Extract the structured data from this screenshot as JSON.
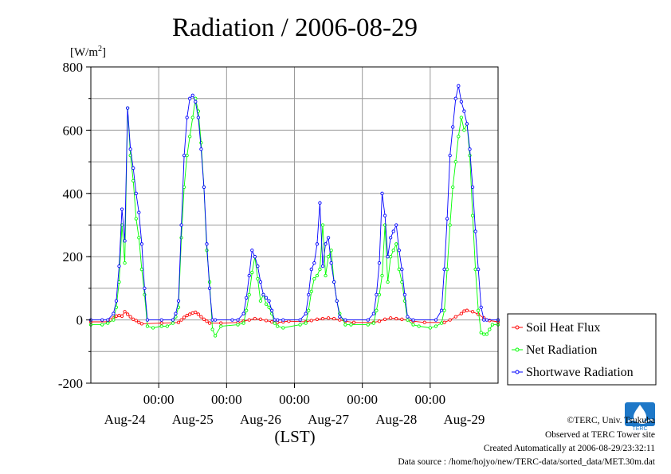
{
  "chart_data": {
    "type": "line",
    "title": "Radiation / 2006-08-29",
    "unit_label": "[W/m",
    "unit_sup": "2",
    "unit_close": "]",
    "xlabel": "(LST)",
    "ylim": [
      -200,
      800
    ],
    "yticks": [
      -200,
      0,
      200,
      400,
      600,
      800
    ],
    "grid": true,
    "legend_position": "bottom-right",
    "x_time_range_hours": [
      0,
      144
    ],
    "x_midnight_ticks": [
      {
        "hour": 24,
        "label": "00:00"
      },
      {
        "hour": 48,
        "label": "00:00"
      },
      {
        "hour": 72,
        "label": "00:00"
      },
      {
        "hour": 96,
        "label": "00:00"
      },
      {
        "hour": 120,
        "label": "00:00"
      }
    ],
    "x_day_labels": [
      {
        "hour": 12,
        "label": "Aug-24"
      },
      {
        "hour": 36,
        "label": "Aug-25"
      },
      {
        "hour": 60,
        "label": "Aug-26"
      },
      {
        "hour": 84,
        "label": "Aug-27"
      },
      {
        "hour": 108,
        "label": "Aug-28"
      },
      {
        "hour": 132,
        "label": "Aug-29"
      }
    ],
    "x_unit": "hours since 2006-08-23 12:00 LST",
    "series": [
      {
        "name": "Soil Heat Flux",
        "color": "#ff0000",
        "x": [
          0,
          6,
          7,
          8,
          9,
          10,
          11,
          12,
          13,
          14,
          15,
          16,
          17,
          18,
          25,
          31,
          32,
          33,
          34,
          35,
          36,
          37,
          38,
          39,
          40,
          41,
          42,
          46,
          52,
          54,
          56,
          58,
          60,
          62,
          64,
          66,
          68,
          70,
          76,
          78,
          80,
          82,
          84,
          86,
          88,
          90,
          93,
          100,
          102,
          104,
          106,
          108,
          110,
          112,
          114,
          118,
          125,
          127,
          129,
          131,
          132,
          133,
          135,
          137,
          139,
          141,
          144
        ],
        "y": [
          -6,
          -6,
          0,
          6,
          12,
          14,
          12,
          26,
          18,
          10,
          2,
          -2,
          -8,
          -12,
          -10,
          -8,
          0,
          8,
          14,
          18,
          22,
          24,
          18,
          10,
          2,
          -4,
          -10,
          -10,
          -8,
          -4,
          0,
          4,
          2,
          -2,
          -6,
          -8,
          -6,
          -4,
          -6,
          -2,
          2,
          4,
          6,
          4,
          0,
          -4,
          -8,
          -8,
          -4,
          2,
          6,
          4,
          2,
          0,
          -4,
          -8,
          -8,
          0,
          10,
          20,
          28,
          30,
          26,
          18,
          6,
          -2,
          -6
        ]
      },
      {
        "name": "Net Radiation",
        "color": "#00ff00",
        "x": [
          0,
          4,
          6,
          8,
          9,
          10,
          11,
          12,
          13,
          14,
          15,
          16,
          17,
          18,
          19,
          20,
          22,
          25,
          27,
          29,
          30,
          31,
          32,
          33,
          34,
          35,
          36,
          37,
          38,
          39,
          40,
          41,
          42,
          43,
          44,
          46,
          52,
          54,
          55,
          56,
          57,
          58,
          59,
          60,
          61,
          62,
          63,
          64,
          65,
          66,
          68,
          74,
          76,
          77,
          78,
          79,
          80,
          81,
          82,
          83,
          84,
          85,
          86,
          87,
          88,
          90,
          92,
          98,
          100,
          101,
          102,
          103,
          104,
          105,
          106,
          107,
          108,
          109,
          110,
          111,
          112,
          114,
          116,
          120,
          122,
          124,
          125,
          126,
          127,
          128,
          129,
          130,
          131,
          132,
          133,
          134,
          135,
          136,
          137,
          138,
          139,
          140,
          141,
          142,
          144
        ],
        "y": [
          -15,
          -15,
          -10,
          0,
          40,
          120,
          300,
          180,
          670,
          520,
          440,
          320,
          260,
          160,
          80,
          -20,
          -25,
          -20,
          -20,
          -10,
          10,
          40,
          260,
          420,
          520,
          580,
          640,
          700,
          660,
          560,
          420,
          220,
          120,
          -30,
          -50,
          -20,
          -15,
          -10,
          30,
          80,
          150,
          200,
          130,
          60,
          80,
          50,
          40,
          20,
          -10,
          -20,
          -25,
          -15,
          -10,
          30,
          90,
          130,
          140,
          160,
          300,
          140,
          200,
          220,
          120,
          60,
          20,
          -15,
          -15,
          -15,
          -10,
          30,
          80,
          140,
          300,
          120,
          200,
          220,
          240,
          160,
          120,
          60,
          0,
          -15,
          -20,
          -25,
          -20,
          -10,
          30,
          160,
          300,
          420,
          500,
          580,
          640,
          600,
          620,
          520,
          330,
          160,
          30,
          -40,
          -45,
          -45,
          -30,
          -15,
          -15
        ]
      },
      {
        "name": "Shortwave Radiation",
        "color": "#0000ff",
        "x": [
          0,
          4,
          6,
          8,
          9,
          10,
          11,
          12,
          13,
          14,
          15,
          16,
          17,
          18,
          19,
          20,
          25,
          29,
          30,
          31,
          32,
          33,
          34,
          35,
          36,
          37,
          38,
          39,
          40,
          41,
          42,
          43,
          44,
          50,
          52,
          54,
          55,
          56,
          57,
          58,
          59,
          60,
          61,
          62,
          63,
          64,
          65,
          66,
          68,
          74,
          76,
          77,
          78,
          79,
          80,
          81,
          82,
          83,
          84,
          85,
          86,
          87,
          88,
          90,
          98,
          100,
          101,
          102,
          103,
          104,
          105,
          106,
          107,
          108,
          109,
          110,
          111,
          112,
          114,
          122,
          124,
          125,
          126,
          127,
          128,
          129,
          130,
          131,
          132,
          133,
          134,
          135,
          136,
          137,
          138,
          139,
          140,
          144
        ],
        "y": [
          0,
          0,
          0,
          20,
          60,
          170,
          350,
          250,
          670,
          540,
          480,
          400,
          340,
          240,
          100,
          0,
          0,
          0,
          20,
          60,
          300,
          520,
          640,
          700,
          710,
          690,
          640,
          540,
          420,
          240,
          100,
          0,
          0,
          0,
          0,
          20,
          70,
          140,
          220,
          200,
          170,
          120,
          80,
          70,
          60,
          30,
          0,
          0,
          0,
          0,
          20,
          80,
          160,
          180,
          240,
          370,
          170,
          240,
          260,
          180,
          120,
          60,
          10,
          0,
          0,
          20,
          80,
          180,
          400,
          330,
          200,
          260,
          280,
          300,
          220,
          160,
          80,
          10,
          0,
          0,
          30,
          160,
          320,
          520,
          610,
          700,
          740,
          690,
          660,
          620,
          540,
          420,
          280,
          160,
          40,
          0,
          0,
          0
        ]
      }
    ]
  },
  "footer": {
    "copyright": "©TERC, Univ. Tsukuba",
    "observed": "Observed at TERC Tower site",
    "created": "Created Automatically at 2006-08-29/23:32:11",
    "source": "Data source : /home/hojyo/new/TERC-data/sorted_data/MET.30m.dat"
  },
  "logo": {
    "text": "TERC",
    "color": "#1e78c8"
  }
}
